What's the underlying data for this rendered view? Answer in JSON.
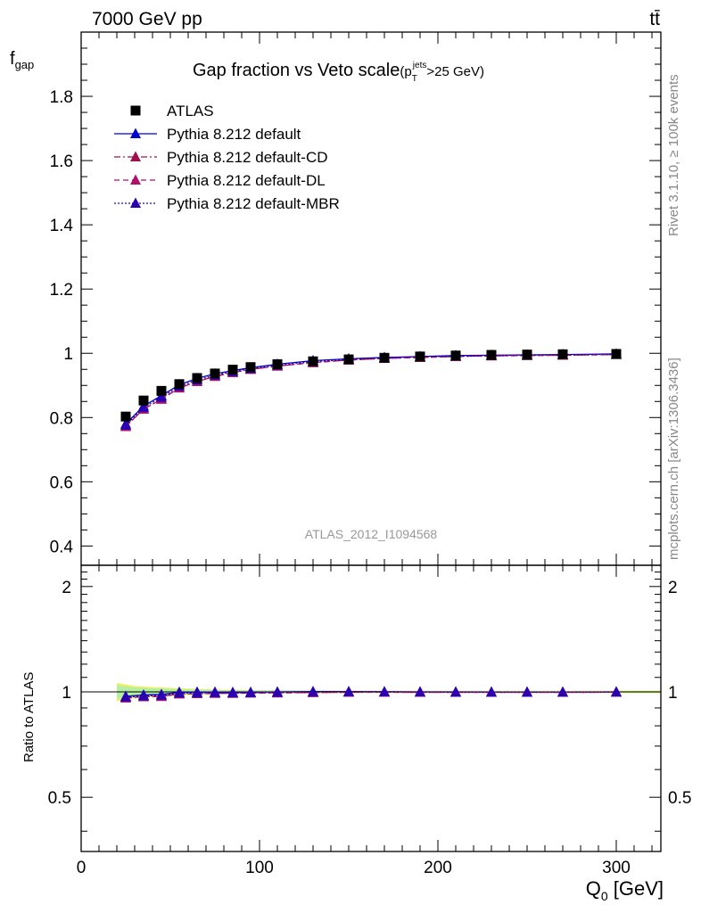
{
  "header": {
    "energy_label": "7000 GeV pp",
    "process_label": "tt̄",
    "rivet_label": "Rivet 3.1.10, ≥ 100k events",
    "mcplots_label": "mcplots.cern.ch [arXiv:1306.3436]",
    "analysis_label": "ATLAS_2012_I1094568"
  },
  "colors": {
    "atlas": "#000000",
    "default": "#0000cc",
    "cd": "#a0104a",
    "dl": "#b0106a",
    "mbr": "#2a00b0",
    "band_green": "#b4f0a0",
    "band_yellow": "#f0f060"
  },
  "chart_data": {
    "type": "line",
    "title_main": "Gap fraction vs Veto scale",
    "title_cut": "(p",
    "title_cut_sup": "jets",
    "title_cut_sub": "T",
    "title_cut_tail": ">25 GeV)",
    "ylabel_main": "f",
    "ylabel_sub": "gap",
    "ylabel_ratio": "Ratio to ATLAS",
    "xlabel_main": "Q",
    "xlabel_sub": "0",
    "xlabel_unit": " [GeV]",
    "xlim": [
      0,
      325
    ],
    "ylim": [
      0.34,
      2.0
    ],
    "ratio_ylim": [
      0.35,
      2.3
    ],
    "x_ticks": [
      0,
      100,
      200,
      300
    ],
    "y_ticks": [
      "0.4",
      "0.6",
      "0.8",
      "1",
      "1.2",
      "1.4",
      "1.6",
      "1.8"
    ],
    "ratio_ticks": [
      "0.5",
      "1",
      "2"
    ],
    "x": [
      25,
      35,
      45,
      55,
      65,
      75,
      85,
      95,
      110,
      130,
      150,
      170,
      190,
      210,
      230,
      250,
      270,
      300
    ],
    "series": [
      {
        "name": "ATLAS",
        "key": "atlas",
        "values": [
          0.803,
          0.853,
          0.883,
          0.904,
          0.923,
          0.937,
          0.949,
          0.957,
          0.966,
          0.975,
          0.981,
          0.986,
          0.99,
          0.993,
          0.995,
          0.996,
          0.997,
          0.998
        ]
      },
      {
        "name": "Pythia 8.212 default",
        "key": "default",
        "values": [
          0.78,
          0.836,
          0.868,
          0.902,
          0.922,
          0.936,
          0.946,
          0.955,
          0.966,
          0.977,
          0.983,
          0.987,
          0.99,
          0.993,
          0.994,
          0.995,
          0.996,
          0.998
        ]
      },
      {
        "name": "Pythia 8.212 default-CD",
        "key": "cd",
        "values": [
          0.772,
          0.826,
          0.857,
          0.892,
          0.912,
          0.928,
          0.94,
          0.95,
          0.96,
          0.971,
          0.979,
          0.984,
          0.987,
          0.99,
          0.992,
          0.993,
          0.994,
          0.996
        ]
      },
      {
        "name": "Pythia 8.212 default-DL",
        "key": "dl",
        "values": [
          0.772,
          0.826,
          0.857,
          0.892,
          0.912,
          0.928,
          0.94,
          0.95,
          0.96,
          0.971,
          0.979,
          0.984,
          0.987,
          0.99,
          0.992,
          0.993,
          0.994,
          0.996
        ]
      },
      {
        "name": "Pythia 8.212 default-MBR",
        "key": "mbr",
        "values": [
          0.776,
          0.831,
          0.863,
          0.897,
          0.917,
          0.932,
          0.943,
          0.952,
          0.963,
          0.974,
          0.981,
          0.986,
          0.989,
          0.991,
          0.993,
          0.994,
          0.995,
          0.997
        ]
      }
    ],
    "ratio_band": {
      "x": [
        20,
        30,
        40,
        50,
        60,
        70,
        80,
        90,
        100,
        120,
        140,
        160,
        180,
        200,
        220,
        240,
        260,
        280,
        325
      ],
      "green_half": [
        0.045,
        0.03,
        0.024,
        0.02,
        0.016,
        0.013,
        0.011,
        0.01,
        0.009,
        0.008,
        0.007,
        0.006,
        0.006,
        0.005,
        0.005,
        0.005,
        0.005,
        0.005,
        0.005
      ],
      "yellow_half": [
        0.06,
        0.04,
        0.032,
        0.027,
        0.022,
        0.018,
        0.015,
        0.013,
        0.012,
        0.011,
        0.01,
        0.009,
        0.009,
        0.008,
        0.008,
        0.008,
        0.008,
        0.008,
        0.008
      ]
    }
  }
}
